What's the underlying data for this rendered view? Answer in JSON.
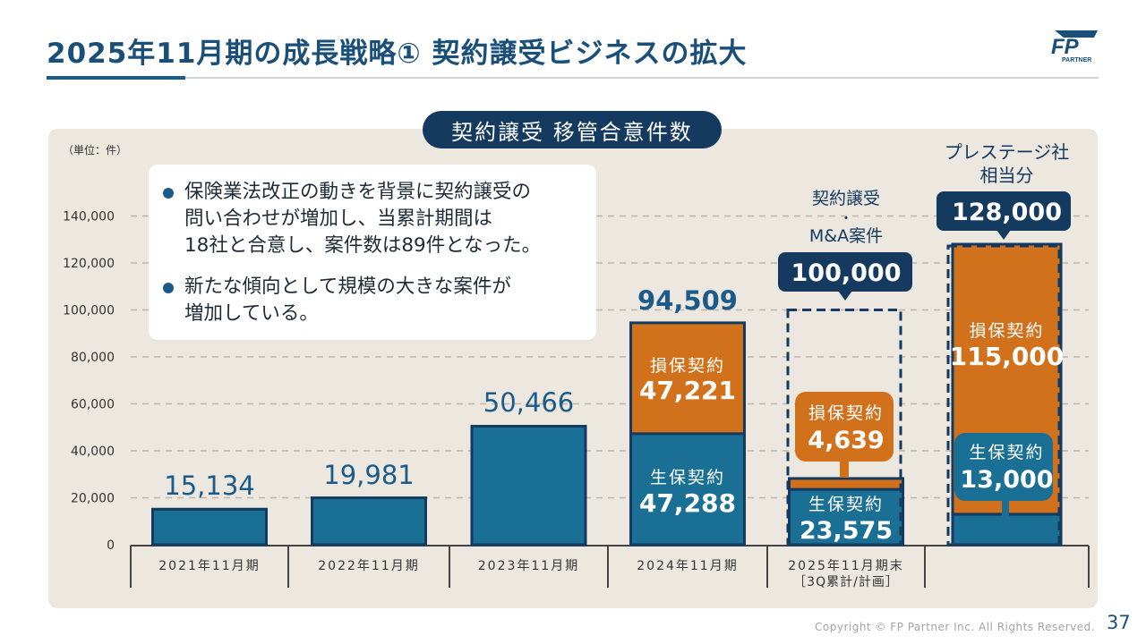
{
  "header": {
    "title": "2025年11月期の成長戦略① 契約譲受ビジネスの拡大",
    "logo_text": "FP",
    "logo_subtext": "PARTNER"
  },
  "chart_data": {
    "type": "bar",
    "title": "契約譲受 移管合意件数",
    "unit_label": "（単位：件）",
    "ylim": [
      0,
      140000
    ],
    "yticks": [
      "0",
      "20,000",
      "40,000",
      "60,000",
      "80,000",
      "100,000",
      "120,000",
      "140,000"
    ],
    "categories": [
      {
        "label": "2021年11月期",
        "label2": ""
      },
      {
        "label": "2022年11月期",
        "label2": ""
      },
      {
        "label": "2023年11月期",
        "label2": ""
      },
      {
        "label": "2024年11月期",
        "label2": ""
      },
      {
        "label": "2025年11月期末",
        "label2": "［3Q累計/計画］"
      },
      {
        "label": "",
        "label2": ""
      }
    ],
    "series": [
      {
        "name": "生保契約",
        "color": "#1a6f95",
        "values": [
          15134,
          19981,
          50466,
          47288,
          23575,
          13000
        ]
      },
      {
        "name": "損保契約",
        "color": "#d2711c",
        "values": [
          0,
          0,
          0,
          47221,
          4639,
          115000
        ]
      }
    ],
    "totals": [
      "15,134",
      "19,981",
      "50,466",
      "94,509",
      "100,000",
      "128,000"
    ],
    "segment_labels": {
      "bar4_nonlife": {
        "name": "損保契約",
        "value": "47,221"
      },
      "bar4_life": {
        "name": "生保契約",
        "value": "47,288"
      },
      "bar5_nonlife": {
        "name": "損保契約",
        "value": "4,639"
      },
      "bar5_life": {
        "name": "生保契約",
        "value": "23,575"
      },
      "bar6_nonlife": {
        "name": "損保契約",
        "value": "115,000"
      },
      "bar6_life": {
        "name": "生保契約",
        "value": "13,000"
      }
    },
    "annotations": {
      "plan_label": [
        "契約譲受",
        "・",
        "M&A案件"
      ],
      "prestige_label": [
        "プレステージ社",
        "相当分"
      ]
    },
    "colors": {
      "life": "#1a6f95",
      "nonlife": "#d2711c",
      "navy": "#143a60",
      "axis": "#444444",
      "grid": "#bdb6ab",
      "total_text": "#1a5b8a"
    }
  },
  "infobox": {
    "bullets": [
      [
        "保険業法改正の動きを背景に契約譲受の",
        "問い合わせが増加し、当累計期間は",
        "18社と合意し、案件数は89件となった。"
      ],
      [
        "新たな傾向として規模の大きな案件が",
        "増加している。"
      ]
    ]
  },
  "footer": {
    "copyright": "Copyright © FP Partner Inc. All Rights Reserved.",
    "page_number": "37"
  }
}
